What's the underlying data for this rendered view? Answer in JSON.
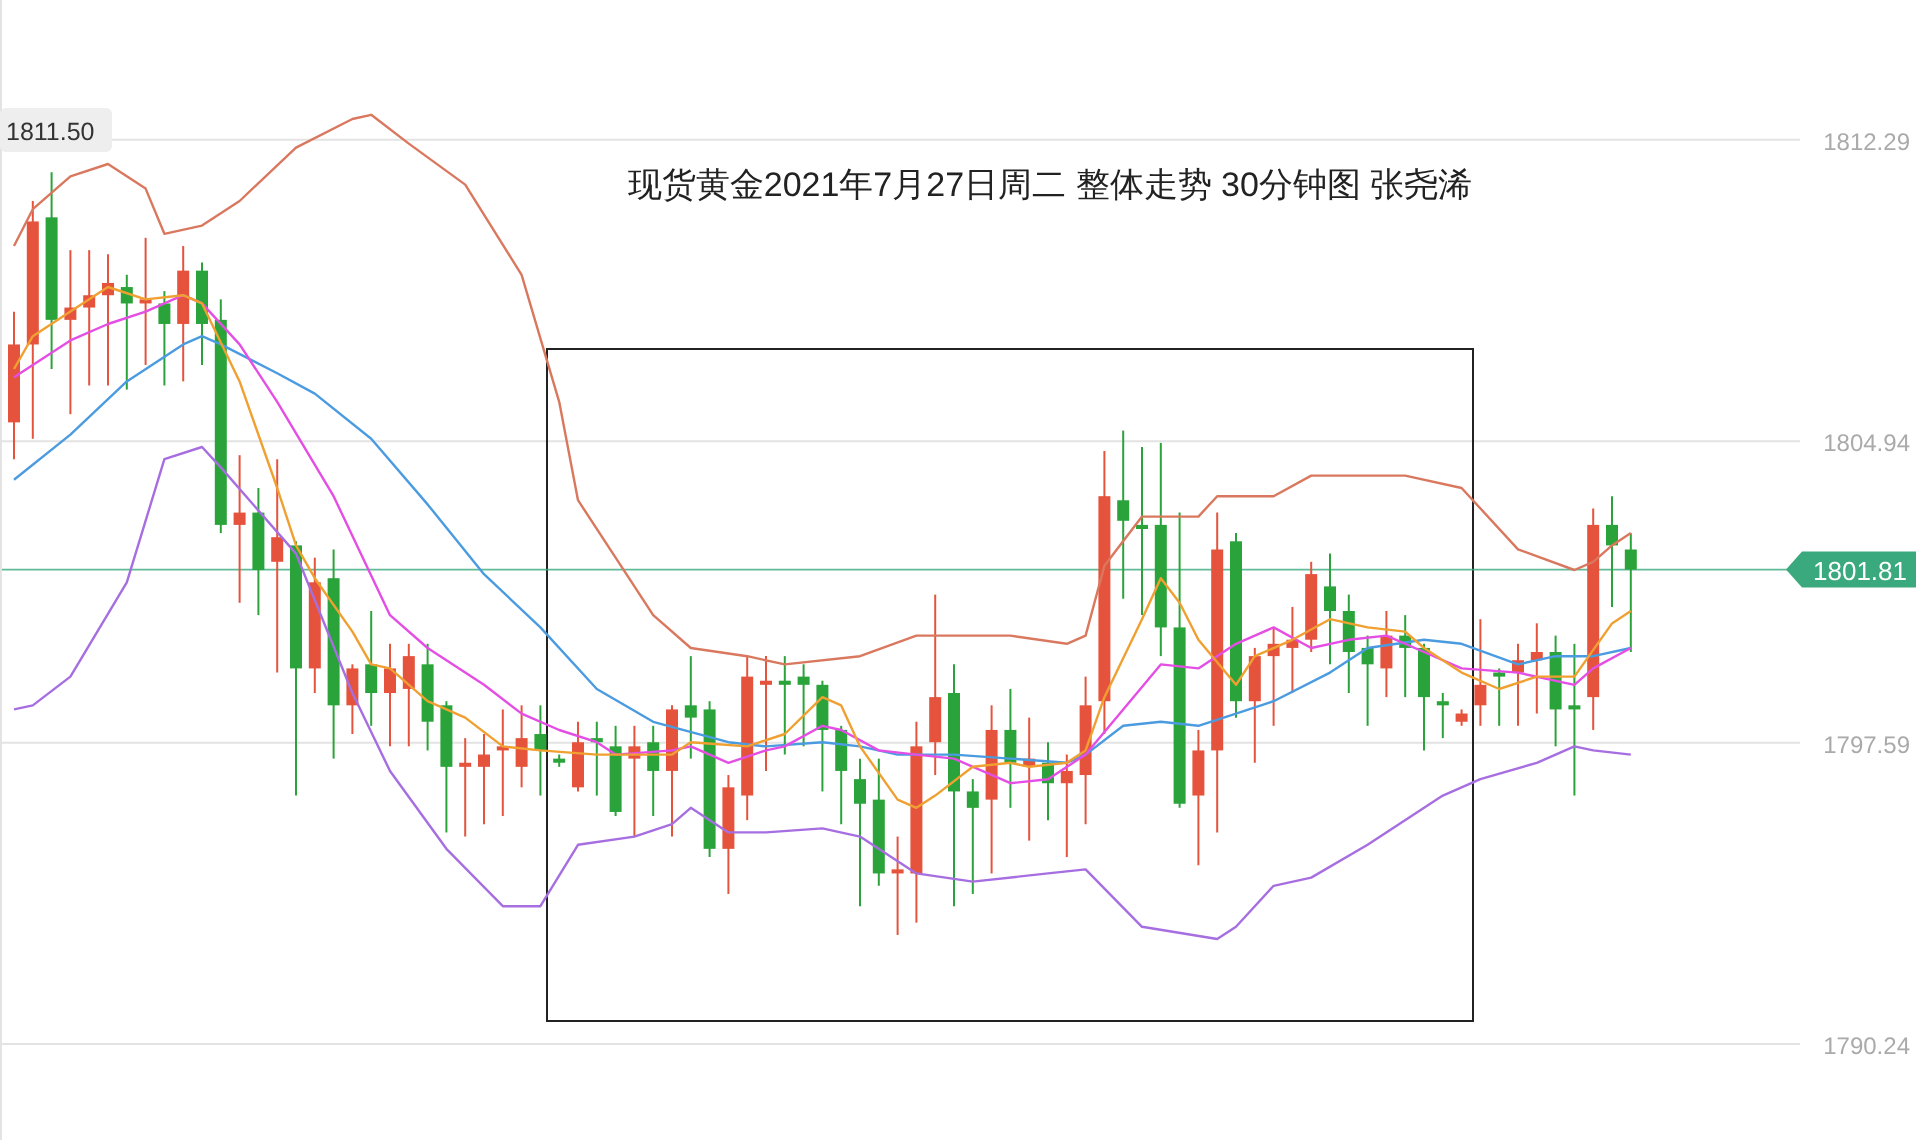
{
  "chart_data": {
    "type": "candlestick",
    "title": "现货黄金2021年7月27日周二 整体走势 30分钟图 张尧浠",
    "categories": [
      null,
      null,
      null,
      null,
      null,
      null,
      null,
      null,
      null,
      null,
      null,
      null,
      null,
      null,
      null,
      null,
      null,
      null,
      null,
      null,
      null,
      null,
      null,
      null,
      null,
      null,
      null,
      null,
      null,
      null,
      null,
      null,
      null,
      null,
      null,
      null,
      null,
      null,
      null,
      null,
      null,
      null,
      null,
      null,
      null,
      null,
      null,
      null,
      null,
      null,
      null,
      null,
      null,
      null,
      null,
      null,
      null,
      null,
      null,
      null,
      null,
      null,
      null,
      null,
      null,
      null,
      null,
      null,
      null,
      null,
      null,
      null,
      null,
      null,
      null,
      null,
      null,
      null,
      null,
      null,
      null,
      null,
      null,
      null,
      null,
      null,
      null
    ],
    "ohlc": [
      [
        1805.4,
        1808.1,
        1804.5,
        1807.3
      ],
      [
        1807.3,
        1810.8,
        1805.0,
        1810.3
      ],
      [
        1810.4,
        1811.5,
        1806.7,
        1807.9
      ],
      [
        1807.9,
        1809.6,
        1805.6,
        1808.2
      ],
      [
        1808.2,
        1809.6,
        1806.3,
        1808.5
      ],
      [
        1808.5,
        1809.5,
        1806.3,
        1808.8
      ],
      [
        1808.7,
        1809.0,
        1806.2,
        1808.3
      ],
      [
        1808.3,
        1809.9,
        1806.8,
        1808.4
      ],
      [
        1808.3,
        1808.6,
        1806.3,
        1807.8
      ],
      [
        1807.8,
        1809.7,
        1806.4,
        1809.1
      ],
      [
        1809.1,
        1809.3,
        1806.8,
        1807.8
      ],
      [
        1807.9,
        1808.4,
        1802.7,
        1802.9
      ],
      [
        1802.9,
        1804.6,
        1801.0,
        1803.2
      ],
      [
        1803.2,
        1803.8,
        1800.7,
        1801.8
      ],
      [
        1802.0,
        1804.5,
        1799.3,
        1802.6
      ],
      [
        1802.4,
        1802.5,
        1796.3,
        1799.4
      ],
      [
        1799.4,
        1802.1,
        1798.8,
        1801.5
      ],
      [
        1801.6,
        1802.3,
        1797.2,
        1798.5
      ],
      [
        1798.5,
        1799.5,
        1797.8,
        1799.4
      ],
      [
        1799.5,
        1800.8,
        1798.0,
        1798.8
      ],
      [
        1798.8,
        1800.0,
        1797.5,
        1799.4
      ],
      [
        1798.9,
        1800.0,
        1797.5,
        1799.7
      ],
      [
        1799.5,
        1800.0,
        1797.4,
        1798.1
      ],
      [
        1798.5,
        1798.6,
        1795.4,
        1797.0
      ],
      [
        1797.0,
        1797.7,
        1795.3,
        1797.1
      ],
      [
        1797.0,
        1797.8,
        1795.6,
        1797.3
      ],
      [
        1797.4,
        1798.4,
        1795.8,
        1797.5
      ],
      [
        1797.0,
        1798.5,
        1796.5,
        1797.7
      ],
      [
        1797.8,
        1798.5,
        1796.3,
        1797.4
      ],
      [
        1797.2,
        1797.3,
        1797.0,
        1797.1
      ],
      [
        1796.5,
        1798.1,
        1796.4,
        1797.6
      ],
      [
        1797.7,
        1798.1,
        1796.3,
        1797.6
      ],
      [
        1797.5,
        1798.0,
        1795.8,
        1795.9
      ],
      [
        1797.2,
        1798.0,
        1795.3,
        1797.5
      ],
      [
        1797.6,
        1798.0,
        1795.8,
        1796.9
      ],
      [
        1796.9,
        1798.5,
        1795.3,
        1798.4
      ],
      [
        1798.5,
        1799.7,
        1797.2,
        1798.2
      ],
      [
        1798.4,
        1798.6,
        1794.8,
        1795.0
      ],
      [
        1795.0,
        1796.8,
        1793.9,
        1796.5
      ],
      [
        1796.3,
        1799.7,
        1795.7,
        1799.2
      ],
      [
        1799.0,
        1799.7,
        1796.9,
        1799.1
      ],
      [
        1799.1,
        1799.7,
        1797.3,
        1799.0
      ],
      [
        1799.2,
        1799.5,
        1797.5,
        1799.0
      ],
      [
        1799.0,
        1799.1,
        1796.4,
        1797.9
      ],
      [
        1797.9,
        1798.0,
        1795.6,
        1796.9
      ],
      [
        1796.7,
        1797.2,
        1793.6,
        1796.1
      ],
      [
        1796.2,
        1797.2,
        1794.1,
        1794.4
      ],
      [
        1794.4,
        1795.3,
        1792.9,
        1794.5
      ],
      [
        1794.4,
        1798.1,
        1793.2,
        1797.5
      ],
      [
        1797.6,
        1801.2,
        1796.8,
        1798.7
      ],
      [
        1798.8,
        1799.5,
        1793.6,
        1796.4
      ],
      [
        1796.4,
        1796.7,
        1793.9,
        1796.0
      ],
      [
        1796.2,
        1798.5,
        1794.4,
        1797.9
      ],
      [
        1797.9,
        1798.9,
        1796.0,
        1797.1
      ],
      [
        1797.0,
        1798.2,
        1795.2,
        1797.2
      ],
      [
        1797.1,
        1797.6,
        1795.7,
        1796.6
      ],
      [
        1796.6,
        1797.3,
        1794.8,
        1796.9
      ],
      [
        1796.8,
        1799.2,
        1795.6,
        1798.5
      ],
      [
        1798.6,
        1804.7,
        1797.8,
        1803.6
      ],
      [
        1803.5,
        1805.2,
        1801.1,
        1803.0
      ],
      [
        1802.9,
        1804.8,
        1800.7,
        1802.8
      ],
      [
        1802.9,
        1804.9,
        1799.7,
        1800.4
      ],
      [
        1800.4,
        1803.2,
        1796.0,
        1796.1
      ],
      [
        1796.3,
        1797.9,
        1794.6,
        1797.4
      ],
      [
        1797.4,
        1803.2,
        1795.4,
        1802.3
      ],
      [
        1802.5,
        1802.7,
        1798.2,
        1798.6
      ],
      [
        1798.6,
        1799.9,
        1797.1,
        1799.7
      ],
      [
        1799.7,
        1800.4,
        1798.0,
        1800.0
      ],
      [
        1799.9,
        1800.9,
        1798.8,
        1800.1
      ],
      [
        1800.1,
        1802.0,
        1799.8,
        1801.7
      ],
      [
        1801.4,
        1802.2,
        1799.5,
        1800.8
      ],
      [
        1800.8,
        1801.2,
        1798.8,
        1799.8
      ],
      [
        1799.9,
        1800.2,
        1798.0,
        1799.5
      ],
      [
        1799.4,
        1800.8,
        1798.7,
        1800.2
      ],
      [
        1800.2,
        1800.7,
        1798.7,
        1799.9
      ],
      [
        1799.9,
        1800.0,
        1797.4,
        1798.7
      ],
      [
        1798.6,
        1798.8,
        1797.7,
        1798.5
      ],
      [
        1798.1,
        1798.4,
        1798.0,
        1798.3
      ],
      [
        1798.5,
        1800.6,
        1798.0,
        1799.0
      ],
      [
        1799.3,
        1799.4,
        1798.0,
        1799.2
      ],
      [
        1799.3,
        1800.0,
        1798.0,
        1799.6
      ],
      [
        1799.6,
        1800.5,
        1798.3,
        1799.8
      ],
      [
        1799.8,
        1800.2,
        1797.5,
        1798.4
      ],
      [
        1798.5,
        1800.0,
        1796.3,
        1798.4
      ],
      [
        1798.7,
        1803.3,
        1797.9,
        1802.9
      ],
      [
        1802.9,
        1803.6,
        1800.9,
        1802.4
      ],
      [
        1802.3,
        1802.7,
        1799.8,
        1801.81
      ]
    ],
    "colors": [
      "#e5533d",
      "#e5533d",
      "#2aa43a",
      "#e5533d",
      "#e5533d",
      "#e5533d",
      "#2aa43a",
      "#e5533d",
      "#2aa43a",
      "#e5533d",
      "#2aa43a",
      "#2aa43a",
      "#e5533d",
      "#2aa43a",
      "#e5533d",
      "#2aa43a",
      "#e5533d",
      "#2aa43a",
      "#e5533d",
      "#2aa43a",
      "#e5533d",
      "#e5533d",
      "#2aa43a",
      "#2aa43a",
      "#e5533d",
      "#e5533d",
      "#e5533d",
      "#e5533d",
      "#2aa43a",
      "#2aa43a",
      "#e5533d",
      "#2aa43a",
      "#2aa43a",
      "#e5533d",
      "#2aa43a",
      "#e5533d",
      "#2aa43a",
      "#2aa43a",
      "#e5533d",
      "#e5533d",
      "#e5533d",
      "#2aa43a",
      "#2aa43a",
      "#2aa43a",
      "#2aa43a",
      "#2aa43a",
      "#2aa43a",
      "#e5533d",
      "#e5533d",
      "#e5533d",
      "#2aa43a",
      "#2aa43a",
      "#e5533d",
      "#2aa43a",
      "#e5533d",
      "#2aa43a",
      "#e5533d",
      "#e5533d",
      "#e5533d",
      "#2aa43a",
      "#2aa43a",
      "#2aa43a",
      "#2aa43a",
      "#e5533d",
      "#e5533d",
      "#2aa43a",
      "#e5533d",
      "#e5533d",
      "#e5533d",
      "#e5533d",
      "#2aa43a",
      "#2aa43a",
      "#2aa43a",
      "#e5533d",
      "#2aa43a",
      "#2aa43a",
      "#2aa43a",
      "#e5533d",
      "#e5533d",
      "#2aa43a",
      "#e5533d",
      "#e5533d",
      "#2aa43a",
      "#2aa43a",
      "#e5533d",
      "#2aa43a",
      "#2aa43a"
    ],
    "series": [
      {
        "type": "line",
        "color": "#d9785e",
        "values": [
          1809.7,
          1810.6,
          null,
          1811.4,
          null,
          1811.7,
          null,
          1811.1,
          1810.0,
          null,
          1810.2,
          null,
          1810.8,
          null,
          null,
          1812.1,
          null,
          null,
          1812.8,
          1812.9,
          null,
          1812.2,
          null,
          null,
          1811.2,
          null,
          null,
          1809.0,
          null,
          1805.9,
          1803.5,
          null,
          1802.1,
          null,
          1800.7,
          null,
          1799.9,
          null,
          null,
          1799.7,
          null,
          1799.5,
          null,
          null,
          null,
          1799.7,
          null,
          null,
          1800.2,
          null,
          1800.2,
          null,
          null,
          1800.2,
          null,
          null,
          1800.0,
          1800.2,
          1801.9,
          null,
          1803.1,
          null,
          null,
          1803.1,
          1803.6,
          null,
          null,
          1803.6,
          null,
          1804.1,
          null,
          null,
          null,
          null,
          1804.1,
          null,
          null,
          1803.8,
          null,
          null,
          1802.3,
          null,
          null,
          1801.8,
          1802.0,
          1802.4,
          1802.7
        ]
      },
      {
        "type": "line",
        "color": "#a66ee0",
        "values": [
          1798.4,
          1798.5,
          null,
          1799.2,
          null,
          null,
          1801.5,
          null,
          1804.5,
          null,
          1804.8,
          1804.3,
          null,
          null,
          null,
          1802.2,
          null,
          null,
          1798.8,
          null,
          1796.9,
          null,
          null,
          1795.0,
          null,
          null,
          1793.6,
          null,
          1793.6,
          null,
          1795.1,
          null,
          null,
          1795.3,
          null,
          1795.6,
          1796.0,
          null,
          1795.4,
          null,
          1795.4,
          null,
          null,
          1795.5,
          null,
          1795.3,
          null,
          null,
          1794.4,
          null,
          null,
          1794.2,
          null,
          null,
          null,
          1794.4,
          null,
          1794.5,
          null,
          null,
          1793.1,
          null,
          null,
          null,
          1792.8,
          1793.1,
          null,
          1794.1,
          null,
          1794.3,
          null,
          null,
          1795.1,
          null,
          null,
          null,
          1796.3,
          null,
          1796.7,
          null,
          null,
          1797.1,
          null,
          1797.5,
          1797.4,
          null,
          1797.3
        ]
      },
      {
        "type": "line",
        "color": "#4b9be0",
        "values": [
          1804.0,
          null,
          null,
          1805.1,
          null,
          null,
          1806.4,
          null,
          null,
          1807.3,
          1807.5,
          1807.3,
          null,
          null,
          1806.6,
          null,
          1806.1,
          null,
          null,
          1805.0,
          null,
          null,
          1803.4,
          null,
          null,
          1801.7,
          null,
          null,
          1800.4,
          null,
          null,
          1798.9,
          null,
          null,
          1798.1,
          null,
          null,
          null,
          1797.6,
          null,
          1797.5,
          null,
          null,
          1797.6,
          null,
          1797.5,
          null,
          1797.3,
          null,
          null,
          1797.3,
          null,
          null,
          1797.2,
          null,
          null,
          1797.1,
          1797.3,
          null,
          1798.0,
          null,
          1798.1,
          null,
          1798.0,
          null,
          1798.3,
          null,
          1798.6,
          null,
          null,
          1799.3,
          null,
          1799.9,
          null,
          null,
          1800.1,
          null,
          1800.0,
          null,
          null,
          1799.5,
          null,
          1799.7,
          null,
          1799.7,
          null,
          1799.9
        ]
      },
      {
        "type": "line",
        "color": "#e44ee4",
        "values": [
          1806.5,
          null,
          null,
          1807.4,
          null,
          1807.8,
          null,
          1808.1,
          null,
          1808.5,
          1808.3,
          null,
          1807.3,
          null,
          1805.9,
          null,
          null,
          1803.6,
          null,
          null,
          1800.7,
          null,
          1799.9,
          null,
          null,
          1799.0,
          null,
          1798.3,
          null,
          1797.9,
          null,
          1797.6,
          1797.3,
          null,
          null,
          1797.4,
          1797.5,
          null,
          1797.1,
          null,
          1797.4,
          1797.5,
          null,
          1798.0,
          1797.9,
          null,
          1797.4,
          null,
          1797.3,
          null,
          1797.2,
          null,
          null,
          1796.6,
          null,
          1796.7,
          null,
          1797.3,
          null,
          1798.4,
          null,
          1799.5,
          null,
          1799.4,
          null,
          1800.0,
          null,
          1800.4,
          null,
          1799.9,
          null,
          1800.1,
          null,
          1800.2,
          null,
          1799.8,
          null,
          1799.4,
          null,
          null,
          1799.3,
          null,
          null,
          1799.0,
          1799.4,
          null,
          1799.9
        ]
      },
      {
        "type": "line",
        "color": "#f0a030",
        "values": [
          1806.7,
          1807.5,
          null,
          1808.1,
          null,
          1808.7,
          null,
          1808.4,
          null,
          1808.5,
          1808.3,
          null,
          1806.4,
          null,
          1803.8,
          1802.4,
          1801.6,
          null,
          1800.3,
          1799.5,
          1799.4,
          null,
          1798.6,
          null,
          1798.2,
          null,
          1797.5,
          null,
          1797.4,
          null,
          null,
          1797.3,
          null,
          1797.3,
          null,
          1797.3,
          1797.6,
          null,
          null,
          1797.5,
          null,
          1797.8,
          null,
          1798.7,
          1798.5,
          1797.5,
          null,
          1796.2,
          1796.0,
          1796.3,
          null,
          1797.0,
          null,
          1797.1,
          1797.0,
          null,
          1797.1,
          1797.4,
          1798.7,
          null,
          1800.6,
          1801.6,
          1801.0,
          1800.1,
          null,
          1799.0,
          1799.7,
          null,
          1800.1,
          null,
          1800.6,
          null,
          1800.4,
          null,
          1800.3,
          1799.9,
          null,
          1799.3,
          null,
          1798.9,
          null,
          1799.2,
          null,
          1799.2,
          null,
          1800.5,
          1800.8
        ]
      }
    ],
    "ylim": [
      1787.9,
      1815.7
    ],
    "yticks": [
      1812.29,
      1804.94,
      1797.59,
      1790.24
    ],
    "grid": "y",
    "ref_lines": [
      {
        "axis": "y",
        "value": 1801.81,
        "label": "1801.81",
        "color": "#3aaa7e"
      }
    ],
    "annotations": [
      "1811.50"
    ]
  }
}
